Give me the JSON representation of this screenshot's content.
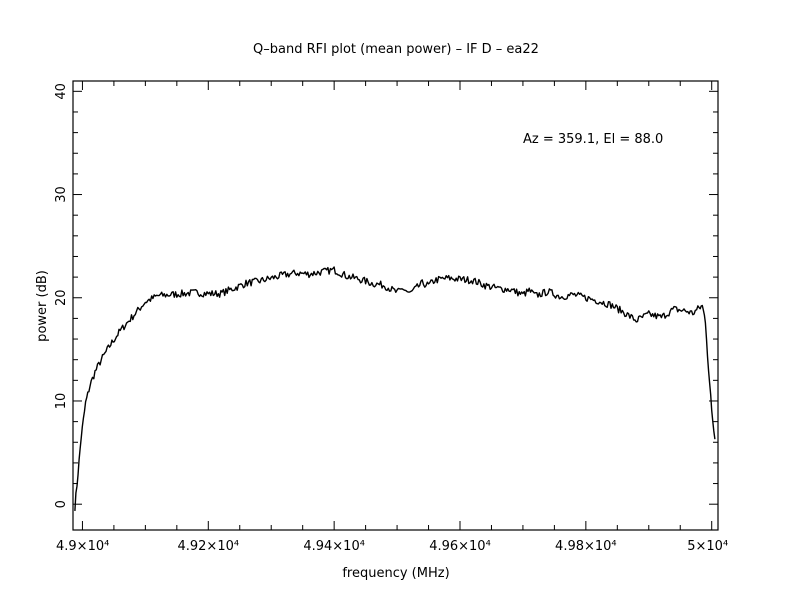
{
  "chart_data": {
    "type": "line",
    "title": "Q–band RFI plot (mean power) – IF D – ea22",
    "xlabel": "frequency (MHz)",
    "ylabel": "power (dB)",
    "annotation": "Az = 359.1, El = 88.0",
    "xlim": [
      48985,
      50010
    ],
    "ylim": [
      -2.5,
      41
    ],
    "x_ticks": [
      {
        "value": 49000,
        "label": "4.9×10⁴"
      },
      {
        "value": 49200,
        "label": "4.92×10⁴"
      },
      {
        "value": 49400,
        "label": "4.94×10⁴"
      },
      {
        "value": 49600,
        "label": "4.96×10⁴"
      },
      {
        "value": 49800,
        "label": "4.98×10⁴"
      },
      {
        "value": 50000,
        "label": "5×10⁴"
      }
    ],
    "y_ticks": [
      {
        "value": 0,
        "label": "0"
      },
      {
        "value": 10,
        "label": "10"
      },
      {
        "value": 20,
        "label": "20"
      },
      {
        "value": 30,
        "label": "30"
      },
      {
        "value": 40,
        "label": "40"
      }
    ],
    "grid": false,
    "line_color": "#000000",
    "series": [
      {
        "x": [
          48988,
          48993,
          48998,
          49005,
          49012,
          49020,
          49030,
          49045,
          49060,
          49080,
          49100,
          49120,
          49140,
          49160,
          49180,
          49200,
          49220,
          49240,
          49260,
          49280,
          49300,
          49320,
          49340,
          49360,
          49380,
          49400,
          49420,
          49440,
          49460,
          49480,
          49500,
          49510,
          49520,
          49540,
          49550,
          49560,
          49580,
          49600,
          49620,
          49640,
          49660,
          49680,
          49700,
          49710,
          49720,
          49740,
          49760,
          49780,
          49800,
          49820,
          49840,
          49860,
          49870,
          49880,
          49900,
          49920,
          49940,
          49960,
          49970,
          49980,
          49985,
          49990,
          49995,
          50000,
          50005
        ],
        "y": [
          -0.3,
          3.0,
          6.5,
          9.8,
          11.5,
          12.8,
          14.0,
          15.5,
          16.8,
          18.2,
          19.6,
          20.2,
          20.3,
          20.4,
          20.5,
          20.4,
          20.4,
          20.9,
          21.4,
          21.6,
          21.9,
          22.2,
          22.4,
          22.3,
          22.5,
          22.7,
          22.1,
          21.8,
          21.4,
          21.2,
          20.5,
          20.9,
          20.4,
          21.4,
          21.2,
          21.7,
          21.9,
          21.8,
          21.7,
          21.2,
          20.9,
          20.8,
          20.3,
          20.7,
          20.2,
          20.6,
          20.1,
          20.3,
          20.0,
          19.7,
          19.3,
          18.6,
          18.2,
          17.8,
          18.4,
          18.1,
          18.9,
          18.7,
          18.5,
          19.0,
          19.2,
          17.8,
          13.0,
          9.0,
          6.3
        ]
      }
    ]
  }
}
